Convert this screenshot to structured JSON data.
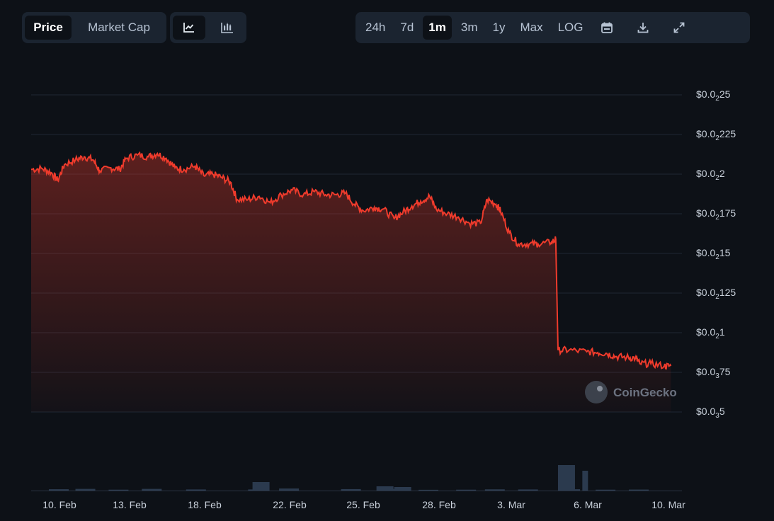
{
  "toolbar": {
    "price_label": "Price",
    "market_cap_label": "Market Cap",
    "line_chart_icon": "line-chart-icon",
    "candlestick_icon": "candlestick-chart-icon",
    "ranges": [
      "24h",
      "7d",
      "1m",
      "3m",
      "1y",
      "Max"
    ],
    "active_range": "1m",
    "log_label": "LOG",
    "calendar_icon": "calendar-icon",
    "download_icon": "download-icon",
    "fullscreen_icon": "fullscreen-icon"
  },
  "watermark": {
    "text": "CoinGecko"
  },
  "colors": {
    "line": "#ef3b2c",
    "background": "#0d1117",
    "grid": "#1f2733",
    "axis_text": "#c9d1db",
    "volume": "#2b3a4e"
  },
  "chart_data": {
    "type": "area",
    "y_scale": "linear",
    "ylim": [
      3.25e-05,
      2.35e-05
    ],
    "y_axis_ticks": [
      {
        "value": 2.5e-05,
        "prefix": "$0.0",
        "sub": "2",
        "suffix": "25"
      },
      {
        "value": 2.25e-05,
        "prefix": "$0.0",
        "sub": "2",
        "suffix": "225"
      },
      {
        "value": 2e-05,
        "prefix": "$0.0",
        "sub": "2",
        "suffix": "2"
      },
      {
        "value": 1.75e-05,
        "prefix": "$0.0",
        "sub": "2",
        "suffix": "175"
      },
      {
        "value": 1.5e-05,
        "prefix": "$0.0",
        "sub": "2",
        "suffix": "15"
      },
      {
        "value": 1.25e-05,
        "prefix": "$0.0",
        "sub": "2",
        "suffix": "125"
      },
      {
        "value": 1e-05,
        "prefix": "$0.0",
        "sub": "2",
        "suffix": "1"
      },
      {
        "value": 7.5e-06,
        "prefix": "$0.0",
        "sub": "3",
        "suffix": "75"
      },
      {
        "value": 5e-06,
        "prefix": "$0.0",
        "sub": "3",
        "suffix": "5"
      }
    ],
    "y_tick_values": [
      0.025,
      0.0225,
      0.02,
      0.0175,
      0.015,
      0.0125,
      0.01,
      0.0075,
      0.005
    ],
    "x_domain": [
      0,
      29.4
    ],
    "x_ticks": [
      {
        "label": "10. Feb",
        "day": 1.0
      },
      {
        "label": "13. Feb",
        "day": 4.0
      },
      {
        "label": "18. Feb",
        "day": 7.0
      },
      {
        "label": "22. Feb",
        "day": 11.0
      },
      {
        "label": "25. Feb",
        "day": 14.0
      },
      {
        "label": "28. Feb",
        "day": 17.0
      },
      {
        "label": "3. Mar",
        "day": 20.0
      },
      {
        "label": "6. Mar",
        "day": 23.0
      },
      {
        "label": "10. Mar",
        "day": 27.0
      }
    ],
    "series": [
      {
        "values": [
          [
            0.0,
            20.3
          ],
          [
            0.5,
            20.35
          ],
          [
            0.9,
            20.1
          ],
          [
            1.2,
            19.6
          ],
          [
            1.5,
            20.6
          ],
          [
            2.0,
            20.9
          ],
          [
            2.4,
            21.1
          ],
          [
            2.8,
            20.9
          ],
          [
            3.1,
            20.2
          ],
          [
            3.6,
            20.4
          ],
          [
            4.0,
            20.3
          ],
          [
            4.3,
            21.0
          ],
          [
            4.8,
            21.2
          ],
          [
            5.3,
            21.1
          ],
          [
            5.7,
            21.3
          ],
          [
            6.1,
            21.0
          ],
          [
            6.5,
            20.4
          ],
          [
            6.9,
            20.3
          ],
          [
            7.4,
            20.5
          ],
          [
            7.8,
            19.9
          ],
          [
            8.2,
            20.0
          ],
          [
            8.6,
            19.8
          ],
          [
            9.0,
            19.5
          ],
          [
            9.3,
            18.4
          ],
          [
            9.8,
            18.4
          ],
          [
            10.3,
            18.6
          ],
          [
            10.8,
            18.2
          ],
          [
            11.3,
            18.7
          ],
          [
            11.8,
            19.0
          ],
          [
            12.3,
            18.7
          ],
          [
            12.8,
            18.9
          ],
          [
            13.3,
            18.7
          ],
          [
            13.8,
            18.7
          ],
          [
            14.2,
            18.8
          ],
          [
            14.6,
            18.1
          ],
          [
            15.0,
            17.7
          ],
          [
            15.5,
            17.9
          ],
          [
            15.9,
            17.8
          ],
          [
            16.4,
            17.2
          ],
          [
            16.8,
            17.6
          ],
          [
            17.2,
            18.0
          ],
          [
            17.6,
            18.3
          ],
          [
            18.0,
            18.6
          ],
          [
            18.3,
            17.8
          ],
          [
            18.8,
            17.5
          ],
          [
            19.3,
            17.3
          ],
          [
            19.8,
            16.9
          ],
          [
            20.3,
            16.9
          ],
          [
            20.6,
            18.4
          ],
          [
            21.0,
            18.1
          ],
          [
            21.2,
            17.7
          ],
          [
            21.6,
            16.3
          ],
          [
            22.0,
            15.6
          ],
          [
            22.5,
            15.6
          ],
          [
            22.9,
            15.6
          ],
          [
            23.5,
            15.7
          ],
          [
            23.7,
            15.9
          ],
          [
            23.8,
            8.9
          ],
          [
            24.3,
            8.9
          ],
          [
            25.1,
            8.8
          ],
          [
            25.6,
            8.75
          ],
          [
            26.0,
            8.7
          ],
          [
            26.4,
            8.5
          ],
          [
            26.9,
            8.45
          ],
          [
            27.3,
            8.4
          ],
          [
            27.5,
            8.05
          ],
          [
            28.0,
            8.05
          ],
          [
            28.6,
            7.9
          ],
          [
            28.9,
            7.9
          ]
        ]
      }
    ],
    "volume": [
      [
        0.8,
        1.2
      ],
      [
        2.0,
        1.5
      ],
      [
        3.5,
        0.8
      ],
      [
        5.0,
        1.5
      ],
      [
        7.0,
        1.0
      ],
      [
        9.8,
        1.0
      ],
      [
        11.2,
        1.8
      ],
      [
        14.0,
        1.3
      ],
      [
        16.0,
        1.4
      ],
      [
        17.5,
        0.7
      ],
      [
        19.2,
        0.8
      ],
      [
        20.5,
        1.1
      ],
      [
        22.0,
        1.0
      ],
      [
        23.9,
        1.2
      ],
      [
        25.5,
        0.8
      ],
      [
        27.0,
        0.9
      ]
    ]
  }
}
